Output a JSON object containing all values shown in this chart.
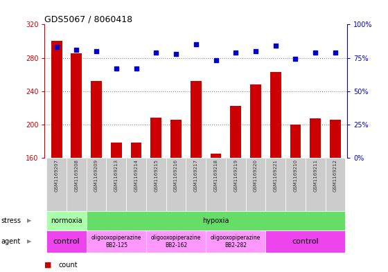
{
  "title": "GDS5067 / 8060418",
  "samples": [
    "GSM1169207",
    "GSM1169208",
    "GSM1169209",
    "GSM1169213",
    "GSM1169214",
    "GSM1169215",
    "GSM1169216",
    "GSM1169217",
    "GSM1169218",
    "GSM1169219",
    "GSM1169220",
    "GSM1169221",
    "GSM1169210",
    "GSM1169211",
    "GSM1169212"
  ],
  "counts": [
    300,
    285,
    252,
    178,
    178,
    208,
    206,
    252,
    165,
    222,
    248,
    263,
    200,
    207,
    206
  ],
  "percentiles": [
    83,
    81,
    80,
    67,
    67,
    79,
    78,
    85,
    73,
    79,
    80,
    84,
    74,
    79,
    79
  ],
  "bar_color": "#cc0000",
  "dot_color": "#0000cc",
  "ylim_left": [
    160,
    320
  ],
  "ylim_right": [
    0,
    100
  ],
  "yticks_left": [
    160,
    200,
    240,
    280,
    320
  ],
  "yticks_right": [
    0,
    25,
    50,
    75,
    100
  ],
  "hlines": [
    200,
    240,
    280
  ],
  "stress_groups": [
    {
      "label": "normoxia",
      "start": 0,
      "end": 2,
      "color": "#aaffaa"
    },
    {
      "label": "hypoxia",
      "start": 2,
      "end": 15,
      "color": "#66dd66"
    }
  ],
  "agent_groups": [
    {
      "label": "control",
      "start": 0,
      "end": 2,
      "color": "#ee44ee",
      "fs": 8
    },
    {
      "label": "oligooxopiperazine\nBB2-125",
      "start": 2,
      "end": 5,
      "color": "#ff99ff",
      "fs": 5.5
    },
    {
      "label": "oligooxopiperazine\nBB2-162",
      "start": 5,
      "end": 8,
      "color": "#ff99ff",
      "fs": 5.5
    },
    {
      "label": "oligooxopiperazine\nBB2-282",
      "start": 8,
      "end": 11,
      "color": "#ff99ff",
      "fs": 5.5
    },
    {
      "label": "control",
      "start": 11,
      "end": 15,
      "color": "#ee44ee",
      "fs": 8
    }
  ],
  "left_axis_color": "#cc0000",
  "right_axis_color": "#0000cc",
  "grid_color": "#888888",
  "label_color": "#333333",
  "bg_color": "#ffffff",
  "xticklabel_bg": "#cccccc"
}
